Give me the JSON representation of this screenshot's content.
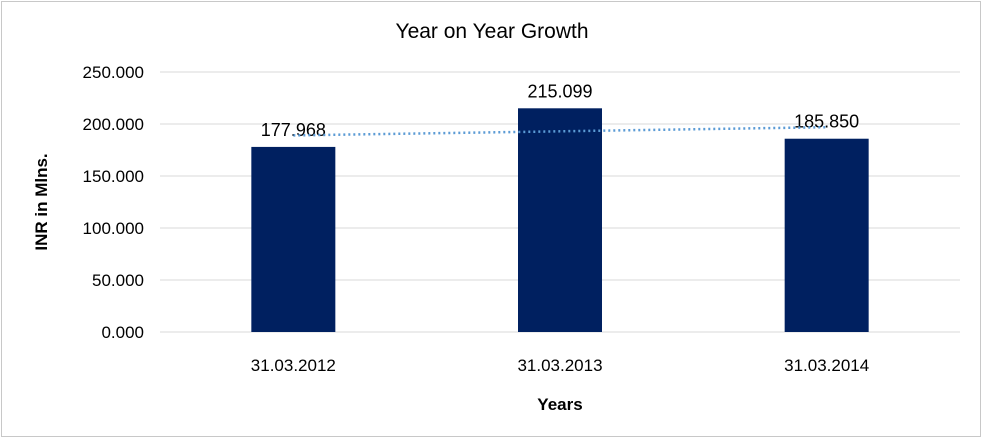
{
  "chart_data": {
    "type": "bar",
    "title": "Year on Year Growth",
    "xlabel": "Years",
    "ylabel": "INR in Mlns.",
    "categories": [
      "31.03.2012",
      "31.03.2013",
      "31.03.2014"
    ],
    "values": [
      177.968,
      215.099,
      185.85
    ],
    "value_labels": [
      "177.968",
      "215.099",
      "185.850"
    ],
    "ylim": [
      0,
      250
    ],
    "yticks": [
      0,
      50,
      100,
      150,
      200,
      250
    ],
    "ytick_labels": [
      "0.000",
      "50.000",
      "100.000",
      "150.000",
      "200.000",
      "250.000"
    ],
    "grid": true,
    "trendline": {
      "type": "linear",
      "style": "dotted",
      "color": "#5b9bd5"
    },
    "colors": {
      "bar": "#002060",
      "grid": "#d9d9d9"
    }
  }
}
